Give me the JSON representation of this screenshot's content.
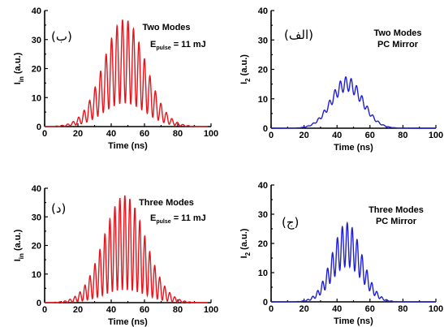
{
  "colors": {
    "red": "#e8141b",
    "blue": "#1f1fd6"
  },
  "chart_data": [
    {
      "type": "line",
      "panel_label": "(ب)",
      "annotations": [
        "Two Modes",
        "E",
        "pulse",
        "= 11 mJ"
      ],
      "xlabel": "Time (ns)",
      "ylabel_main": "I",
      "ylabel_sub": "in",
      "ylabel_unit": "(a.u.)",
      "xlim": [
        0,
        100
      ],
      "ylim": [
        0,
        40
      ],
      "xticks": [
        "0",
        "20",
        "40",
        "60",
        "80",
        "100"
      ],
      "yticks": [
        "0",
        "10",
        "20",
        "30",
        "40"
      ],
      "series": [
        {
          "color": "red",
          "center": 48,
          "sigma": 12.5,
          "peak": 37,
          "floor_frac": 0.22,
          "period": 3.3,
          "phase": 46.8,
          "x_start": 0,
          "x_end": 98
        }
      ]
    },
    {
      "type": "line",
      "panel_label": "(الف)",
      "annotations": [
        "Two Modes",
        "PC Mirror"
      ],
      "xlabel": "Time (ns)",
      "ylabel_main": "I",
      "ylabel_sub": "2",
      "ylabel_unit": "(a.u.)",
      "xlim": [
        0,
        100
      ],
      "ylim": [
        0,
        40
      ],
      "xticks": [
        "0",
        "20",
        "40",
        "60",
        "80",
        "100"
      ],
      "yticks": [
        "0",
        "10",
        "20",
        "30",
        "40"
      ],
      "series": [
        {
          "color": "blue",
          "center": 46,
          "sigma": 9.5,
          "peak": 17.5,
          "floor_frac": 0.72,
          "period": 3.3,
          "phase": 45.3,
          "x_start": 0,
          "x_end": 100
        }
      ]
    },
    {
      "type": "line",
      "panel_label": "(د)",
      "annotations": [
        "Three Modes",
        "E",
        "pulse",
        "= 11 mJ"
      ],
      "xlabel": "Time (ns)",
      "ylabel_main": "I",
      "ylabel_sub": "in",
      "ylabel_unit": "(a.u.)",
      "xlim": [
        0,
        100
      ],
      "ylim": [
        0,
        40
      ],
      "xticks": [
        "0",
        "20",
        "40",
        "60",
        "80",
        "100"
      ],
      "yticks": [
        "0",
        "10",
        "20",
        "30",
        "40"
      ],
      "series": [
        {
          "color": "red",
          "center": 48,
          "sigma": 12.5,
          "peak": 37.5,
          "floor_frac": 0.12,
          "period": 3.0,
          "phase": 48.2,
          "x_start": 0,
          "x_end": 98
        }
      ]
    },
    {
      "type": "line",
      "panel_label": "(ج)",
      "annotations": [
        "Three Modes",
        "PC Mirror"
      ],
      "xlabel": "Time (ns)",
      "ylabel_main": "I",
      "ylabel_sub": "2",
      "ylabel_unit": "(a.u.)",
      "xlim": [
        0,
        100
      ],
      "ylim": [
        0,
        40
      ],
      "xticks": [
        "0",
        "20",
        "40",
        "60",
        "80",
        "100"
      ],
      "yticks": [
        "0",
        "10",
        "20",
        "30",
        "40"
      ],
      "series": [
        {
          "color": "blue",
          "center": 46,
          "sigma": 9,
          "peak": 27,
          "floor_frac": 0.45,
          "period": 3.0,
          "phase": 46.2,
          "x_start": 0,
          "x_end": 100
        }
      ]
    }
  ]
}
